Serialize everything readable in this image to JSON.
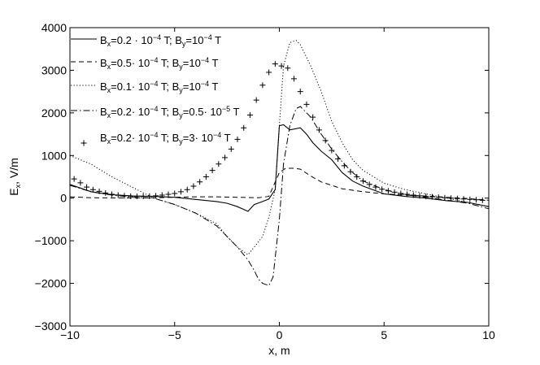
{
  "chart_data": {
    "type": "line",
    "xlabel": "x, m",
    "ylabel": "E",
    "ylabel_sub": "x",
    "ylabel_rest": ", V/m",
    "xlim": [
      -10,
      10
    ],
    "ylim": [
      -3000,
      4000
    ],
    "xticks": [
      -10,
      -5,
      0,
      5,
      10
    ],
    "yticks": [
      -3000,
      -2000,
      -1000,
      0,
      1000,
      2000,
      3000,
      4000
    ],
    "grid": false,
    "legend_position": "top-left",
    "series": [
      {
        "legend": {
          "parts": [
            [
              "B",
              "x",
              "=0.2 · 10",
              "−4",
              " T; B",
              "y",
              "=10",
              "−4",
              " T"
            ]
          ]
        },
        "style": "solid",
        "x": [
          -10,
          -9,
          -8,
          -7,
          -6,
          -5,
          -4,
          -3,
          -2.5,
          -2,
          -1.5,
          -1.2,
          -0.8,
          -0.5,
          -0.2,
          0,
          0.2,
          0.5,
          1,
          1.3,
          1.6,
          2,
          2.5,
          3,
          3.5,
          4,
          5,
          6,
          7,
          8,
          9,
          10
        ],
        "y": [
          320,
          150,
          80,
          50,
          40,
          20,
          -30,
          -80,
          -120,
          -200,
          -310,
          -150,
          -80,
          -20,
          200,
          1700,
          1720,
          1600,
          1650,
          1500,
          1300,
          1100,
          900,
          600,
          400,
          280,
          100,
          40,
          0,
          -60,
          -100,
          -200
        ]
      },
      {
        "legend": {
          "parts": [
            [
              "B",
              "x",
              "=0.5· 10",
              "−4",
              " T; B",
              "y",
              "=10",
              "−4",
              " T"
            ]
          ]
        },
        "style": "dashed",
        "x": [
          -10,
          -9,
          -8,
          -7,
          -6,
          -5,
          -4,
          -3,
          -2,
          -1,
          -0.5,
          0,
          0.3,
          0.7,
          1,
          1.5,
          2,
          3,
          4,
          5,
          6,
          7,
          8,
          9,
          10
        ],
        "y": [
          30,
          10,
          5,
          5,
          10,
          20,
          30,
          30,
          20,
          10,
          40,
          600,
          700,
          700,
          680,
          520,
          380,
          220,
          150,
          100,
          70,
          50,
          20,
          -10,
          -50
        ]
      },
      {
        "legend": {
          "parts": [
            [
              "B",
              "x",
              "=0.1· 10",
              "−4",
              " T; B",
              "y",
              "=10",
              "−4",
              " T"
            ]
          ]
        },
        "style": "dotted",
        "x": [
          -10,
          -9,
          -8,
          -7,
          -6,
          -5,
          -4,
          -3,
          -2.5,
          -2,
          -1.5,
          -1.2,
          -0.8,
          -0.5,
          -0.2,
          0,
          0.2,
          0.5,
          0.8,
          1,
          1.5,
          2,
          2.5,
          3,
          3.5,
          4,
          5,
          6,
          7,
          8,
          9,
          10
        ],
        "y": [
          1000,
          800,
          500,
          250,
          0,
          -150,
          -350,
          -600,
          -900,
          -1150,
          -1330,
          -1150,
          -900,
          -450,
          200,
          1700,
          3100,
          3650,
          3700,
          3600,
          3100,
          2500,
          1800,
          1300,
          900,
          650,
          350,
          200,
          100,
          0,
          -100,
          -200
        ]
      },
      {
        "legend": {
          "parts": [
            [
              "B",
              "x",
              "=0.2· 10",
              "−4",
              " T; B",
              "y",
              "=0.5· 10",
              "−5",
              " T"
            ]
          ]
        },
        "style": "dashdot",
        "x": [
          -10,
          -9,
          -8,
          -7,
          -6,
          -5,
          -4,
          -3,
          -2.5,
          -2,
          -1.5,
          -1.2,
          -1,
          -0.8,
          -0.5,
          -0.3,
          0,
          0.2,
          0.5,
          0.8,
          1,
          1.5,
          2,
          2.5,
          3,
          3.5,
          4,
          5,
          6,
          7,
          8,
          9,
          10
        ],
        "y": [
          300,
          150,
          70,
          20,
          0,
          -150,
          -350,
          -650,
          -900,
          -1150,
          -1450,
          -1700,
          -1900,
          -2000,
          -2050,
          -1850,
          -500,
          800,
          1700,
          2100,
          2150,
          1900,
          1500,
          1150,
          850,
          600,
          400,
          200,
          80,
          20,
          -50,
          -120,
          -250
        ]
      },
      {
        "legend": {
          "parts": [
            [
              "B",
              "x",
              "=0.2· 10",
              "−4",
              " T; B",
              "y",
              "=3· 10",
              "−4",
              " T"
            ]
          ]
        },
        "style": "plus",
        "x": [
          -9.8,
          -9.5,
          -9.2,
          -8.9,
          -8.6,
          -8.3,
          -8.0,
          -7.7,
          -7.4,
          -7.1,
          -6.8,
          -6.5,
          -6.2,
          -5.9,
          -5.6,
          -5.3,
          -5.0,
          -4.7,
          -4.4,
          -4.1,
          -3.8,
          -3.5,
          -3.2,
          -2.9,
          -2.6,
          -2.3,
          -2.0,
          -1.7,
          -1.4,
          -1.1,
          -0.8,
          -0.5,
          -0.2,
          0.1,
          0.4,
          0.7,
          1.0,
          1.3,
          1.6,
          1.9,
          2.2,
          2.5,
          2.8,
          3.1,
          3.4,
          3.7,
          4.0,
          4.3,
          4.6,
          4.9,
          5.2,
          5.5,
          5.8,
          6.1,
          6.4,
          6.7,
          7.0,
          7.3,
          7.6,
          7.9,
          8.2,
          8.5,
          8.8,
          9.1,
          9.4,
          9.7
        ],
        "y": [
          450,
          360,
          260,
          200,
          160,
          120,
          90,
          70,
          55,
          45,
          40,
          40,
          45,
          55,
          70,
          90,
          110,
          150,
          200,
          280,
          380,
          500,
          650,
          800,
          950,
          1150,
          1380,
          1650,
          1950,
          2300,
          2650,
          2950,
          3150,
          3100,
          3050,
          2800,
          2500,
          2200,
          1900,
          1600,
          1350,
          1120,
          920,
          760,
          620,
          500,
          400,
          320,
          260,
          210,
          170,
          140,
          110,
          90,
          70,
          55,
          40,
          30,
          20,
          10,
          0,
          -10,
          -20,
          -30,
          -40,
          -50
        ]
      }
    ]
  }
}
